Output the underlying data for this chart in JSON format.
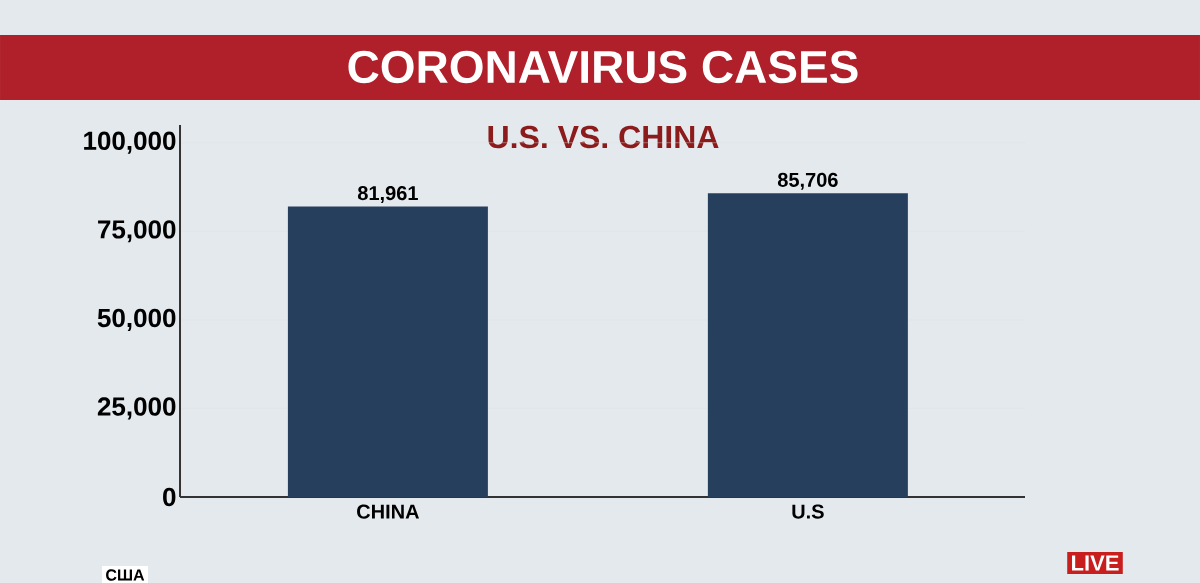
{
  "chart_data": {
    "type": "bar",
    "title": "CORONAVIRUS CASES",
    "subtitle": "U.S. VS. CHINA",
    "categories": [
      "CHINA",
      "U.S"
    ],
    "values": [
      81961,
      85706
    ],
    "color": "#263f5c",
    "ylim": [
      0,
      105000
    ],
    "yticks": [
      0,
      {
        "value": 25000,
        "label": "25,000"
      },
      {
        "value": 50000,
        "label": "50,000"
      },
      {
        "value": 75000,
        "label": "75,000"
      },
      {
        "value": 100000,
        "label": "100,000"
      }
    ],
    "grid": "y",
    "value_labels": [
      "81,961",
      "85,706"
    ],
    "annotations": [
      "США",
      "LIVE"
    ]
  }
}
